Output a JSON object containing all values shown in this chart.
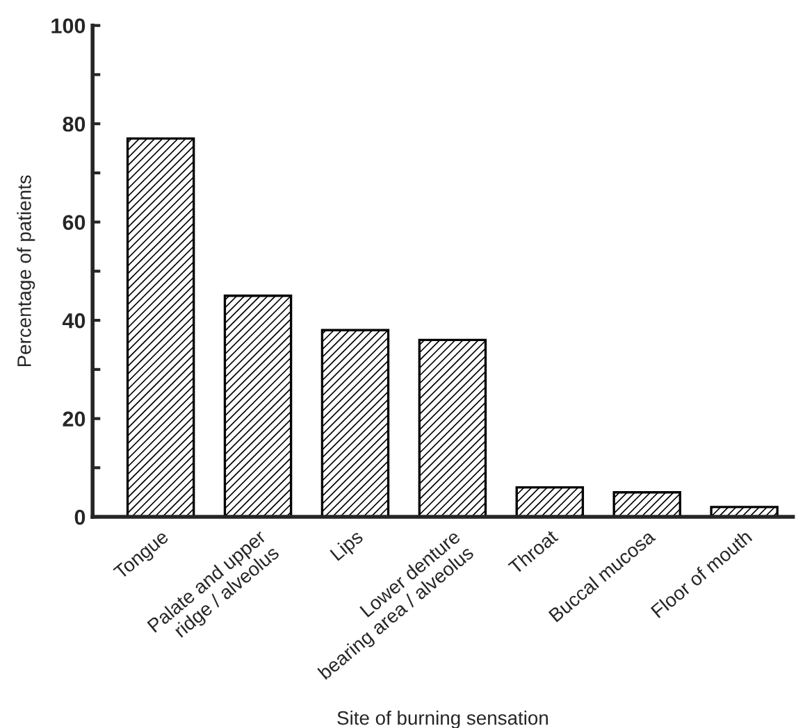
{
  "chart_data": {
    "type": "bar",
    "categories": [
      "Tongue",
      "Palate and upper\nridge / alveolus",
      "Lips",
      "Lower denture\nbearing area / alveolus",
      "Throat",
      "Buccal mucosa",
      "Floor of mouth"
    ],
    "values": [
      77,
      45,
      38,
      36,
      6,
      5,
      2
    ],
    "color": "#000000",
    "xlabel": "Site of burning sensation",
    "ylabel": "Percentage of patients",
    "ylim": [
      0,
      100
    ],
    "yticks": [
      0,
      {
        "value": 10,
        "label": null
      },
      20,
      {
        "value": 30,
        "label": null
      },
      40,
      {
        "value": 50,
        "label": null
      },
      60,
      {
        "value": 70,
        "label": null
      },
      80,
      {
        "value": 90,
        "label": null
      },
      100
    ],
    "grid": false
  }
}
